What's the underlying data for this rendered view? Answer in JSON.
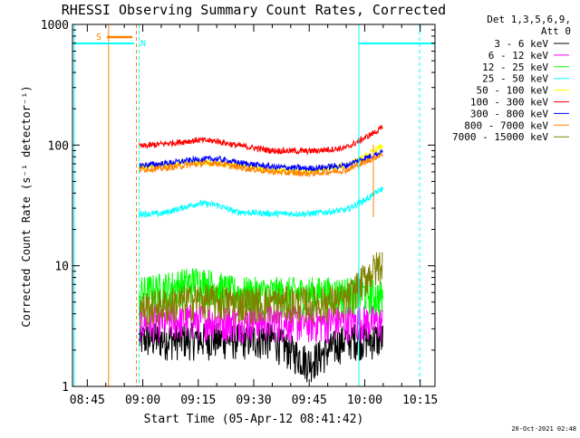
{
  "chart_data": {
    "type": "line",
    "title": "RHESSI Observing Summary Count Rates, Corrected",
    "xlabel": "Start Time (05-Apr-12 08:41:42)",
    "ylabel": "Corrected Count Rate (s⁻¹ detector⁻¹)",
    "yscale": "log",
    "xlim_minutes_after_0841": [
      0,
      98
    ],
    "ylim": [
      1,
      1000
    ],
    "x_ticks": [
      "08:45",
      "09:00",
      "09:15",
      "09:30",
      "09:45",
      "10:00",
      "10:15"
    ],
    "y_ticks": [
      "1",
      "10",
      "100",
      "1000"
    ],
    "legend_header": [
      "Det 1,3,5,6,9,",
      "Att 0"
    ],
    "legend_position": "right",
    "footer": "20-Oct-2021 02:48",
    "series": [
      {
        "name": "3 - 6 keV",
        "color": "#000000",
        "x": [
          "08:59",
          "09:05",
          "09:15",
          "09:25",
          "09:35",
          "09:45",
          "09:55",
          "10:00",
          "10:05"
        ],
        "values": [
          2.5,
          2.5,
          2.5,
          2.5,
          2.5,
          1.6,
          2.5,
          2.5,
          2.5
        ]
      },
      {
        "name": "6 - 12 keV",
        "color": "#ff00ff",
        "x": [
          "08:59",
          "09:05",
          "09:15",
          "09:25",
          "09:35",
          "09:45",
          "09:55",
          "10:00",
          "10:05"
        ],
        "values": [
          3.5,
          3.5,
          3.6,
          3.5,
          3.5,
          3.4,
          3.5,
          3.5,
          3.4
        ]
      },
      {
        "name": "12 - 25 keV",
        "color": "#00ff00",
        "x": [
          "08:59",
          "09:05",
          "09:15",
          "09:25",
          "09:35",
          "09:45",
          "09:55",
          "10:00",
          "10:05"
        ],
        "values": [
          6,
          6.5,
          7.5,
          6,
          6,
          6,
          6,
          6,
          5.5
        ]
      },
      {
        "name": "25 - 50 keV",
        "color": "#00ffff",
        "x": [
          "08:59",
          "09:05",
          "09:15",
          "09:20",
          "09:25",
          "09:35",
          "09:45",
          "09:55",
          "10:00",
          "10:05"
        ],
        "values": [
          27,
          27,
          33,
          32,
          28,
          27,
          27,
          29,
          35,
          44
        ]
      },
      {
        "name": "50 - 100 keV",
        "color": "#ffff00",
        "x": [
          "08:59",
          "09:05",
          "09:15",
          "09:25",
          "09:35",
          "09:45",
          "09:55",
          "10:00",
          "10:05"
        ],
        "values": [
          65,
          68,
          72,
          68,
          62,
          60,
          68,
          80,
          100
        ]
      },
      {
        "name": "100 - 300 keV",
        "color": "#ff0000",
        "x": [
          "08:59",
          "09:05",
          "09:15",
          "09:20",
          "09:25",
          "09:35",
          "09:45",
          "09:55",
          "10:00",
          "10:05"
        ],
        "values": [
          97,
          102,
          110,
          108,
          100,
          90,
          89,
          95,
          115,
          140
        ]
      },
      {
        "name": "300 - 800 keV",
        "color": "#0000ff",
        "x": [
          "08:59",
          "09:05",
          "09:15",
          "09:20",
          "09:25",
          "09:35",
          "09:45",
          "09:55",
          "10:00",
          "10:05"
        ],
        "values": [
          68,
          70,
          76,
          77,
          72,
          66,
          64,
          68,
          78,
          88
        ]
      },
      {
        "name": "800 - 7000 keV",
        "color": "#ff8000",
        "x": [
          "08:59",
          "09:05",
          "09:15",
          "09:20",
          "09:25",
          "09:35",
          "09:45",
          "09:55",
          "10:00",
          "10:05"
        ],
        "values": [
          63,
          64,
          70,
          71,
          66,
          60,
          58,
          62,
          72,
          85
        ]
      },
      {
        "name": "7000 - 15000 keV",
        "color": "#808000",
        "x": [
          "08:59",
          "09:05",
          "09:15",
          "09:25",
          "09:35",
          "09:45",
          "09:55",
          "10:00",
          "10:05"
        ],
        "values": [
          4.5,
          4.8,
          5.3,
          5.0,
          5.0,
          5.0,
          5.2,
          8,
          11
        ]
      }
    ],
    "annotations": {
      "saa_label": "S",
      "saa_color": "#ff8000",
      "night_label": "N",
      "night_color": "#00ffff"
    }
  }
}
